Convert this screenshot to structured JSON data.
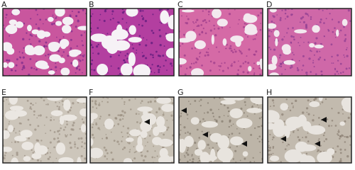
{
  "panels": [
    {
      "label": "A"
    },
    {
      "label": "B"
    },
    {
      "label": "C"
    },
    {
      "label": "D"
    },
    {
      "label": "E"
    },
    {
      "label": "F"
    },
    {
      "label": "G"
    },
    {
      "label": "H"
    }
  ]
}
